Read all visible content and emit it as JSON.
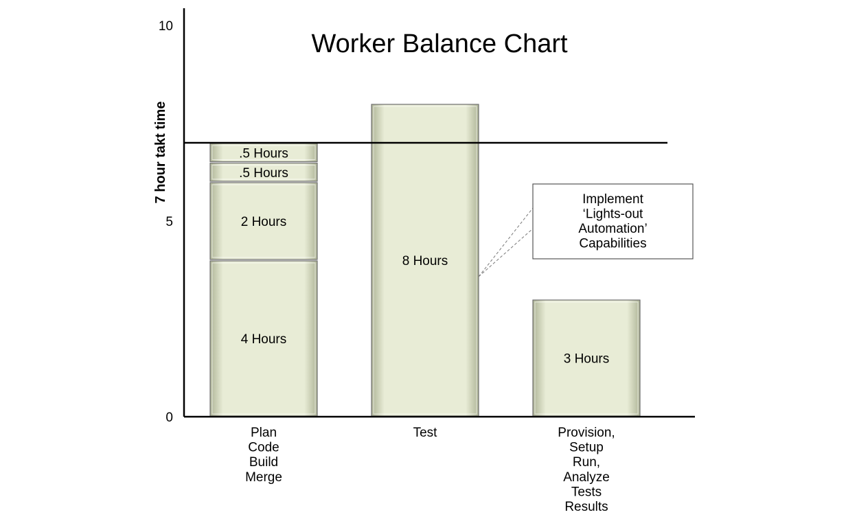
{
  "chart_data": {
    "type": "bar",
    "stacked": true,
    "title": "Worker Balance Chart",
    "ylabel": "7 hour takt time",
    "ylim": [
      0,
      10
    ],
    "yticks": [
      0,
      5,
      10
    ],
    "takt_line": 7,
    "bars": [
      {
        "category_lines": [
          "Plan",
          "Code",
          "Build",
          "Merge"
        ],
        "segments": [
          {
            "value": 4,
            "label": "4 Hours"
          },
          {
            "value": 2,
            "label": "2 Hours"
          },
          {
            "value": 0.5,
            "label": ".5 Hours"
          },
          {
            "value": 0.5,
            "label": ".5 Hours"
          }
        ]
      },
      {
        "category_lines": [
          "Test"
        ],
        "segments": [
          {
            "value": 8,
            "label": "8 Hours"
          }
        ]
      },
      {
        "category_lines": [
          "Provision,",
          "Setup",
          "Run,",
          "Analyze",
          "Tests",
          "Results"
        ],
        "segments": [
          {
            "value": 3,
            "label": "3 Hours"
          }
        ]
      }
    ],
    "annotation": {
      "lines": [
        "Implement",
        "‘Lights-out",
        "Automation’",
        "Capabilities"
      ],
      "points_to_bar": 1
    },
    "colors": {
      "bar_fill": "#e8ecd6",
      "bar_edge": "#b9bfa4",
      "bar_outline": "#6f6f6f"
    }
  }
}
